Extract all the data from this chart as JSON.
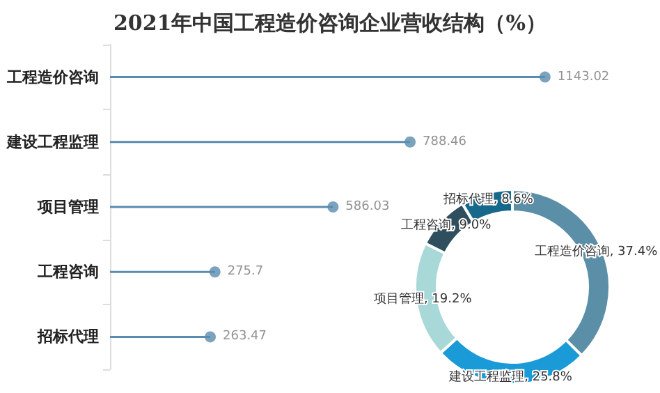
{
  "chart_data": [
    {
      "type": "lollipop",
      "title": "2021年中国工程造价咨询企业营收结构（%）",
      "orientation": "horizontal",
      "categories": [
        "工程造价咨询",
        "建设工程监理",
        "项目管理",
        "工程咨询",
        "招标代理"
      ],
      "values": [
        1143.02,
        788.46,
        586.03,
        275.7,
        263.47
      ],
      "color": "#5b8cae",
      "data_labels": true,
      "marker": "circle",
      "tick_labels": "y"
    },
    {
      "type": "donut",
      "categories": [
        "工程造价咨询",
        "建设工程监理",
        "项目管理",
        "工程咨询",
        "招标代理"
      ],
      "values": [
        37.4,
        25.8,
        19.2,
        9.0,
        8.6
      ],
      "value_labels": [
        "37.4%",
        "25.8%",
        "19.2%",
        "9.0%",
        "8.6%"
      ],
      "colors": [
        "#5b8fa8",
        "#1a9ad6",
        "#a8d8d8",
        "#2f4f5f",
        "#16698a"
      ]
    }
  ]
}
